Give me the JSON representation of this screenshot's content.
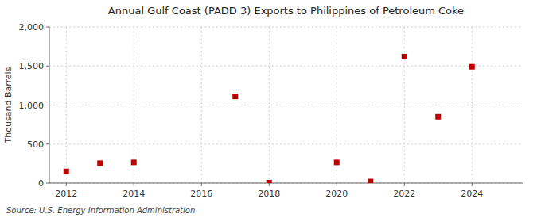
{
  "chart_data": {
    "type": "scatter",
    "title": "Annual Gulf Coast (PADD 3) Exports to Philippines of Petroleum Coke",
    "ylabel": "Thousand Barrels",
    "source": "Source: U.S. Energy Information Administration",
    "x": [
      2012,
      2013,
      2014,
      2017,
      2018,
      2020,
      2021,
      2022,
      2023,
      2024
    ],
    "values": [
      150,
      255,
      265,
      1110,
      5,
      265,
      20,
      1620,
      850,
      1490
    ],
    "color": "#bb0000",
    "marker": "square",
    "xlim": [
      2011.5,
      2025.5
    ],
    "xticks": [
      2012,
      2014,
      2016,
      2018,
      2020,
      2022,
      2024
    ],
    "ylim": [
      0,
      2000
    ],
    "yticks": [
      0,
      500,
      {
        "value": 1000,
        "label": "1,000"
      },
      {
        "value": 1500,
        "label": "1,500"
      },
      {
        "value": 2000,
        "label": "2,000"
      }
    ],
    "grid": true
  }
}
